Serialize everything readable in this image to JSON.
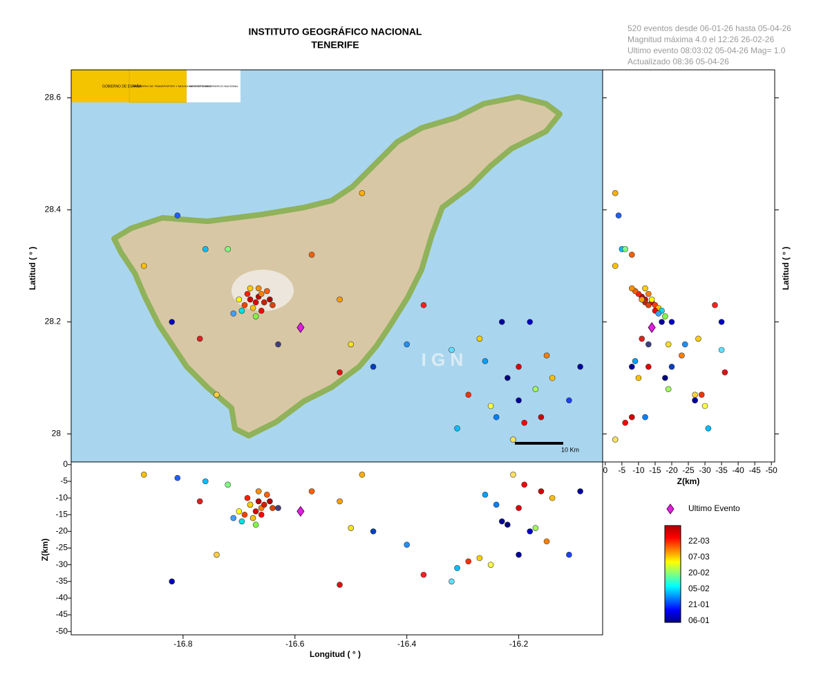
{
  "header": {
    "title": [
      "INSTITUTO GEOGRÁFICO NACIONAL",
      "TENERIFE"
    ],
    "info": [
      "520 eventos desde 06-01-26 hasta 05-04-26",
      "Magnitud máxima 4.0 el 12:26 26-02-26",
      "Ultimo evento   08:03:02 05-04-26  Mag= 1.0",
      "Actualizado  08:36  05-04-26"
    ]
  },
  "logo": [
    "GOBIERNO DE ESPAÑA",
    "MINISTERIO DE TRANSPORTES Y MOVILIDAD SOSTENIBLE",
    "INSTITUTO GEOGRÁFICO NACIONAL"
  ],
  "watermark": "I G N",
  "scale_bar": "10 Km",
  "chart_data": {
    "type": "scatter",
    "xlabel": "Longitud ( ° )",
    "ylabel": "Latitud ( ° )",
    "zlabel": "Z(km)",
    "xlim": [
      -17.0,
      -16.05
    ],
    "ylim": [
      27.95,
      28.65
    ],
    "zlim": [
      -51,
      0.8
    ],
    "xticks": [
      -16.8,
      -16.6,
      -16.4,
      -16.2
    ],
    "yticks": [
      28,
      28.2,
      28.4,
      28.6
    ],
    "zticks": [
      0,
      -5,
      -10,
      -15,
      -20,
      -25,
      -30,
      -35,
      -40,
      -45,
      -50
    ],
    "x": [
      -16.68,
      -16.67,
      -16.665,
      -16.69,
      -16.66,
      -16.675,
      -16.685,
      -16.655,
      -16.7,
      -16.695,
      -16.67,
      -16.65,
      -16.645,
      -16.66,
      -16.68,
      -16.71,
      -16.64,
      -16.665,
      -16.82,
      -16.81,
      -16.87,
      -16.77,
      -16.76,
      -16.72,
      -16.74,
      -16.63,
      -16.52,
      -16.5,
      -16.46,
      -16.4,
      -16.37,
      -16.48,
      -16.57,
      -16.52,
      -16.23,
      -16.18,
      -16.27,
      -16.2,
      -16.22,
      -16.17,
      -16.29,
      -16.15,
      -16.11,
      -16.25,
      -16.19,
      -16.31,
      -16.16,
      -16.14,
      -16.21,
      -16.09,
      -16.24,
      -16.32,
      -16.2,
      -16.26
    ],
    "y": [
      28.24,
      28.235,
      28.245,
      28.23,
      28.25,
      28.225,
      28.25,
      28.235,
      28.24,
      28.22,
      28.21,
      28.255,
      28.24,
      28.22,
      28.26,
      28.215,
      28.23,
      28.26,
      28.2,
      28.39,
      28.3,
      28.17,
      28.33,
      28.33,
      28.07,
      28.16,
      28.11,
      28.16,
      28.12,
      28.16,
      28.23,
      28.43,
      28.32,
      28.24,
      28.2,
      28.2,
      28.17,
      28.12,
      28.1,
      28.08,
      28.07,
      28.14,
      28.06,
      28.05,
      28.02,
      28.01,
      28.03,
      28.1,
      27.99,
      28.12,
      28.03,
      28.15,
      28.06,
      28.13
    ],
    "z": [
      -12,
      -14,
      -11,
      -15,
      -13,
      -16,
      -10,
      -12,
      -14,
      -17,
      -18,
      -9,
      -11,
      -15,
      -12,
      -16,
      -13,
      -8,
      -35,
      -4,
      -3,
      -11,
      -5,
      -6,
      -27,
      -13,
      -36,
      -19,
      -20,
      -24,
      -33,
      -3,
      -8,
      -11,
      -17,
      -20,
      -28,
      -13,
      -18,
      -19,
      -29,
      -23,
      -27,
      -30,
      -6,
      -31,
      -8,
      -10,
      -3,
      -8,
      -12,
      -35,
      -27,
      -9
    ],
    "colors": [
      "#d00000",
      "#e00000",
      "#c00000",
      "#ff4000",
      "#ff8000",
      "#ffc000",
      "#ff2000",
      "#d02000",
      "#ffff00",
      "#00e0e0",
      "#80ff40",
      "#ff6000",
      "#b00000",
      "#ff0000",
      "#ffd000",
      "#40a0ff",
      "#e04000",
      "#ff9000",
      "#0000c0",
      "#2060ff",
      "#ffc000",
      "#e02020",
      "#00c0ff",
      "#80ff80",
      "#ffd040",
      "#404080",
      "#e01010",
      "#ffe020",
      "#0040c0",
      "#2090ff",
      "#ff2020",
      "#ffb000",
      "#ff6000",
      "#ffa000",
      "#0000a0",
      "#0000c0",
      "#ffd000",
      "#e00000",
      "#000080",
      "#a0ff60",
      "#ff3000",
      "#ff8000",
      "#2040ff",
      "#ffff40",
      "#ff0000",
      "#00c0ff",
      "#d00000",
      "#ffc000",
      "#ffe060",
      "#0000a0",
      "#0080ff",
      "#60e0ff",
      "#0000a0",
      "#00a0ff"
    ],
    "last_event": {
      "name": "Ultimo Evento",
      "x": -16.59,
      "y": 28.19,
      "z": -14,
      "color": "#e020e0"
    },
    "colorbar": {
      "labels": [
        "22-03",
        "07-03",
        "20-02",
        "05-02",
        "21-01",
        "06-01"
      ],
      "colors": [
        "#b00000",
        "#ff0000",
        "#ff8000",
        "#ffff00",
        "#80ff80",
        "#00ffff",
        "#0080ff",
        "#0000ff",
        "#000080"
      ]
    }
  }
}
